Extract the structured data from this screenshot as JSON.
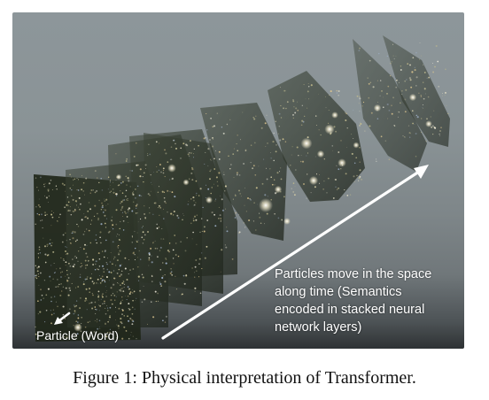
{
  "figure": {
    "annotation_text": "Particles move in the space\nalong time (Semantics\nencoded in stacked neural\nnetwork layers)",
    "particle_label": "Particle (Word)"
  },
  "caption": "Figure 1: Physical interpretation of Transformer.",
  "colors": {
    "background_top": "#8d969a",
    "background_bottom": "#2e3234",
    "sheet_fill": "#2c3226",
    "arrow": "#ffffff",
    "caption_text": "#111111"
  },
  "icons": [
    "white-arrow-icon",
    "short-arrow-icon"
  ]
}
